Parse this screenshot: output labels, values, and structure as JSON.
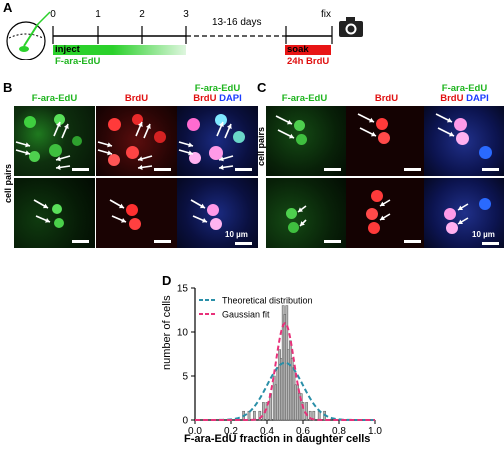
{
  "panel_labels": {
    "a": "A",
    "b": "B",
    "c": "C",
    "d": "D"
  },
  "timeline": {
    "ticks": [
      "0",
      "1",
      "2",
      "3"
    ],
    "gap_label": "13-16 days",
    "fix_label": "fix",
    "inject_label": "inject",
    "inject_sub": "F-ara-EdU",
    "soak_label": "soak",
    "soak_sub": "24h BrdU",
    "colors": {
      "green": "#2bd12b",
      "red": "#e81414"
    }
  },
  "panel_b": {
    "headers": {
      "green": "F-ara-EdU",
      "red": "BrdU",
      "merge_top": "F-ara-EdU",
      "merge_brdu": "BrdU",
      "merge_dapi": "DAPI"
    },
    "side_label": "cell pairs",
    "scale_text": "10 µm"
  },
  "panel_c": {
    "headers": {
      "green": "F-ara-EdU",
      "red": "BrdU",
      "merge_top": "F-ara-EdU",
      "merge_brdu": "BrdU",
      "merge_dapi": "DAPI"
    },
    "side_label": "cell pairs",
    "scale_text": "10 µm"
  },
  "chart_data": {
    "type": "bar",
    "xlabel": "F-ara-EdU fraction in daughter cells",
    "ylabel": "number of cells",
    "xlim": [
      0.0,
      1.0
    ],
    "ylim": [
      0,
      15
    ],
    "x_ticks": [
      "0.0",
      "0.2",
      "0.4",
      "0.6",
      "0.8",
      "1.0"
    ],
    "y_ticks": [
      "0",
      "5",
      "10",
      "15"
    ],
    "legend": [
      "Theoretical distribution",
      "Gaussian fit"
    ],
    "legend_position": "top-left",
    "colors": {
      "theoretical": "#2a8fa8",
      "gaussian": "#e8317a",
      "bars": "#a0a0a0"
    },
    "bins_x": [
      0.27,
      0.3,
      0.33,
      0.36,
      0.38,
      0.4,
      0.42,
      0.44,
      0.45,
      0.46,
      0.47,
      0.48,
      0.49,
      0.5,
      0.51,
      0.52,
      0.53,
      0.54,
      0.55,
      0.56,
      0.57,
      0.58,
      0.59,
      0.6,
      0.62,
      0.64,
      0.66,
      0.69,
      0.72
    ],
    "bins_y": [
      1,
      1,
      1,
      1,
      2,
      2,
      3,
      5,
      4,
      6,
      8,
      7,
      13,
      12,
      13,
      8,
      9,
      7,
      6,
      4,
      4,
      3,
      3,
      2,
      2,
      1,
      1,
      1,
      1
    ],
    "gaussian_fit": {
      "mean": 0.5,
      "sd": 0.05,
      "peak": 11.0
    },
    "theoretical": {
      "mean": 0.5,
      "sd": 0.1,
      "peak": 6.5
    }
  }
}
